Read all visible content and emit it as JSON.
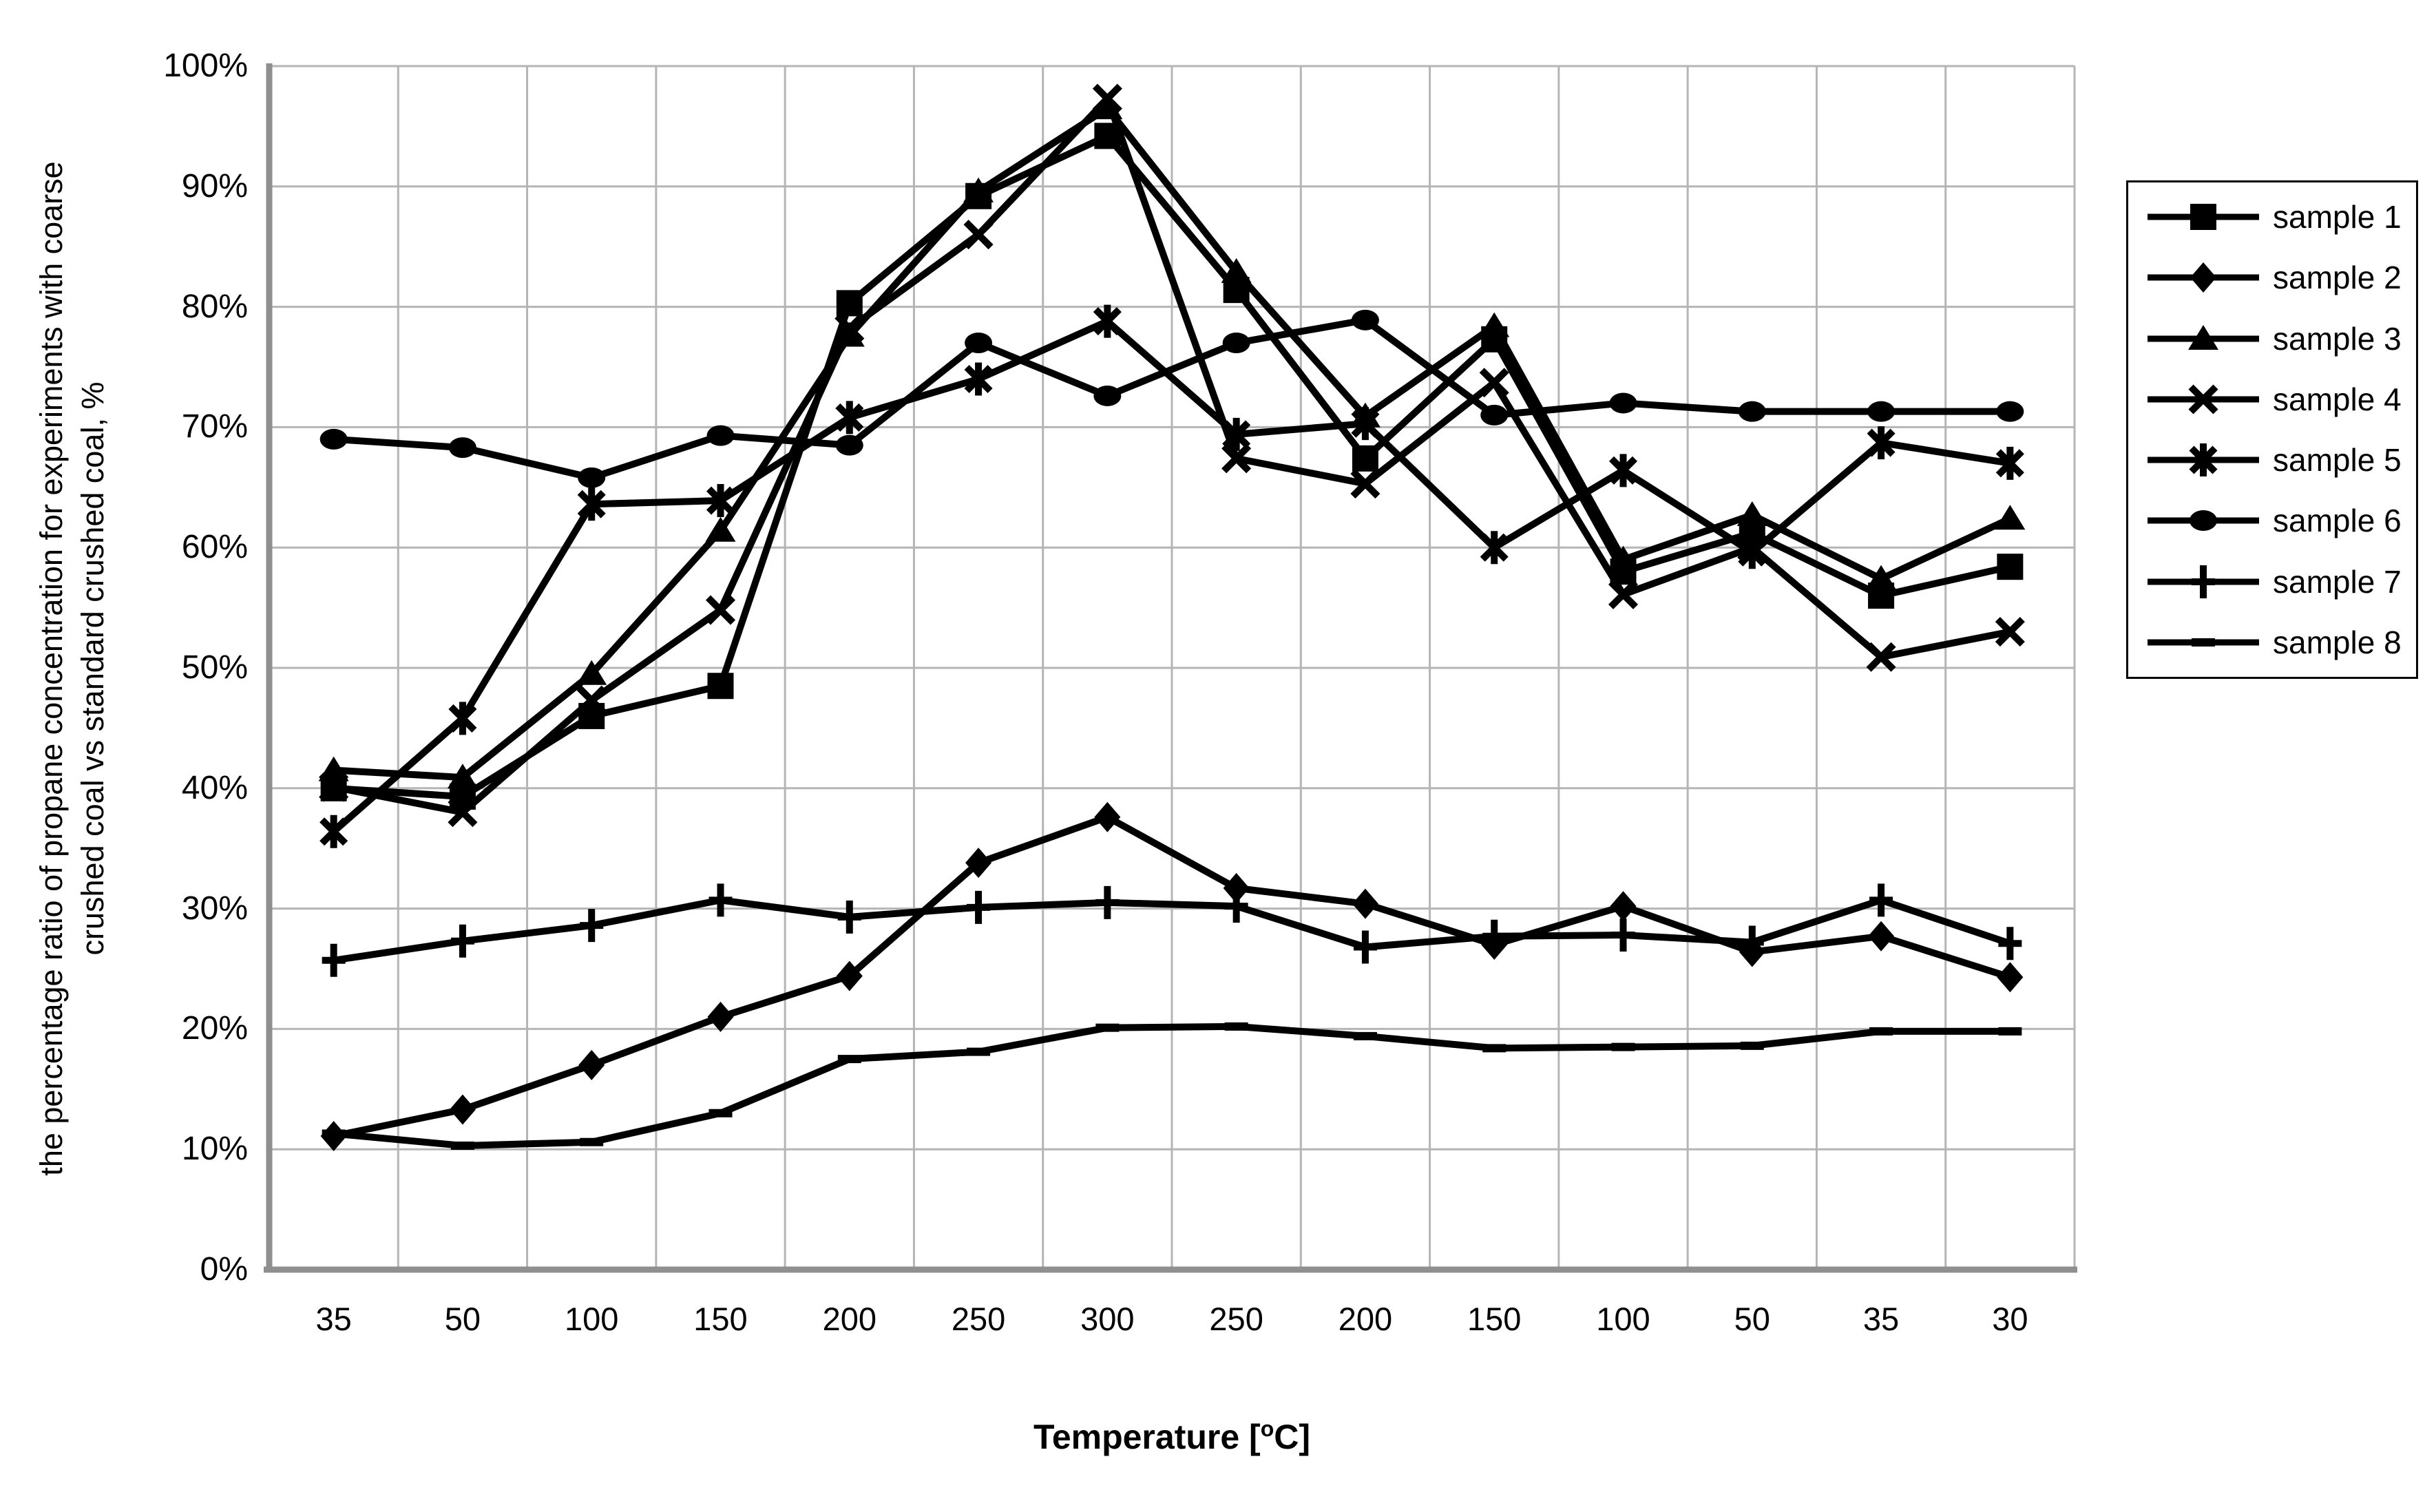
{
  "chart_data": {
    "type": "line",
    "title": "",
    "xlabel": "Temperature [°C]",
    "xlabel_parts": {
      "prefix": "Temperature [",
      "sup": "o",
      "suffix": "C]"
    },
    "ylabel": "the percentage ratio of propane concentration for experiments with coarse crushed coal vs standard crushed coal, %",
    "ylabel_lines": [
      "the percentage ratio of propane concentration for experiments with coarse",
      "crushed coal vs standard crushed coal, %"
    ],
    "categories": [
      "35",
      "50",
      "100",
      "150",
      "200",
      "250",
      "300",
      "250",
      "200",
      "150",
      "100",
      "50",
      "35",
      "30"
    ],
    "y_ticks": [
      "0%",
      "10%",
      "20%",
      "30%",
      "40%",
      "50%",
      "60%",
      "70%",
      "80%",
      "90%",
      "100%"
    ],
    "ylim": [
      0,
      100
    ],
    "grid": true,
    "legend_position": "right",
    "series": [
      {
        "name": "sample 1",
        "marker": "square",
        "values": [
          40.0,
          39.3,
          46.0,
          48.5,
          80.3,
          89.2,
          94.2,
          81.4,
          67.4,
          77.3,
          58.0,
          61.2,
          56.0,
          58.4
        ]
      },
      {
        "name": "sample 2",
        "marker": "diamond",
        "values": [
          11.1,
          13.3,
          17.0,
          21.0,
          24.4,
          33.8,
          37.6,
          31.7,
          30.4,
          27.0,
          30.2,
          26.4,
          27.7,
          24.3
        ]
      },
      {
        "name": "sample 3",
        "marker": "triangle",
        "values": [
          41.5,
          40.9,
          49.5,
          61.4,
          77.6,
          89.6,
          96.5,
          82.9,
          70.9,
          78.4,
          59.0,
          62.7,
          57.4,
          62.4
        ]
      },
      {
        "name": "sample 4",
        "marker": "x",
        "values": [
          40.1,
          38.0,
          47.3,
          54.8,
          78.2,
          86.0,
          97.3,
          67.4,
          65.3,
          73.7,
          56.1,
          60.0,
          50.9,
          53.0
        ]
      },
      {
        "name": "sample 5",
        "marker": "star",
        "values": [
          36.4,
          45.8,
          63.6,
          63.9,
          70.8,
          74.0,
          78.8,
          69.4,
          70.3,
          60.0,
          66.4,
          59.6,
          68.7,
          67.0
        ]
      },
      {
        "name": "sample 6",
        "marker": "circle",
        "values": [
          69.0,
          68.3,
          65.8,
          69.3,
          68.5,
          77.0,
          72.6,
          77.0,
          78.9,
          71.0,
          72.0,
          71.3,
          71.3,
          71.3
        ]
      },
      {
        "name": "sample 7",
        "marker": "plus",
        "values": [
          25.7,
          27.3,
          28.6,
          30.7,
          29.3,
          30.1,
          30.5,
          30.2,
          26.8,
          27.7,
          27.8,
          27.2,
          30.7,
          27.1
        ]
      },
      {
        "name": "sample 8",
        "marker": "dash",
        "values": [
          11.3,
          10.3,
          10.6,
          13.0,
          17.5,
          18.1,
          20.1,
          20.2,
          19.4,
          18.4,
          18.5,
          18.6,
          19.8,
          19.8
        ]
      }
    ],
    "colors": {
      "series": "#000000",
      "gridline": "#b5b5b5",
      "axis_line": "#8f8f8f",
      "background": "#ffffff",
      "legend_border": "#000000",
      "text": "#000000"
    }
  }
}
